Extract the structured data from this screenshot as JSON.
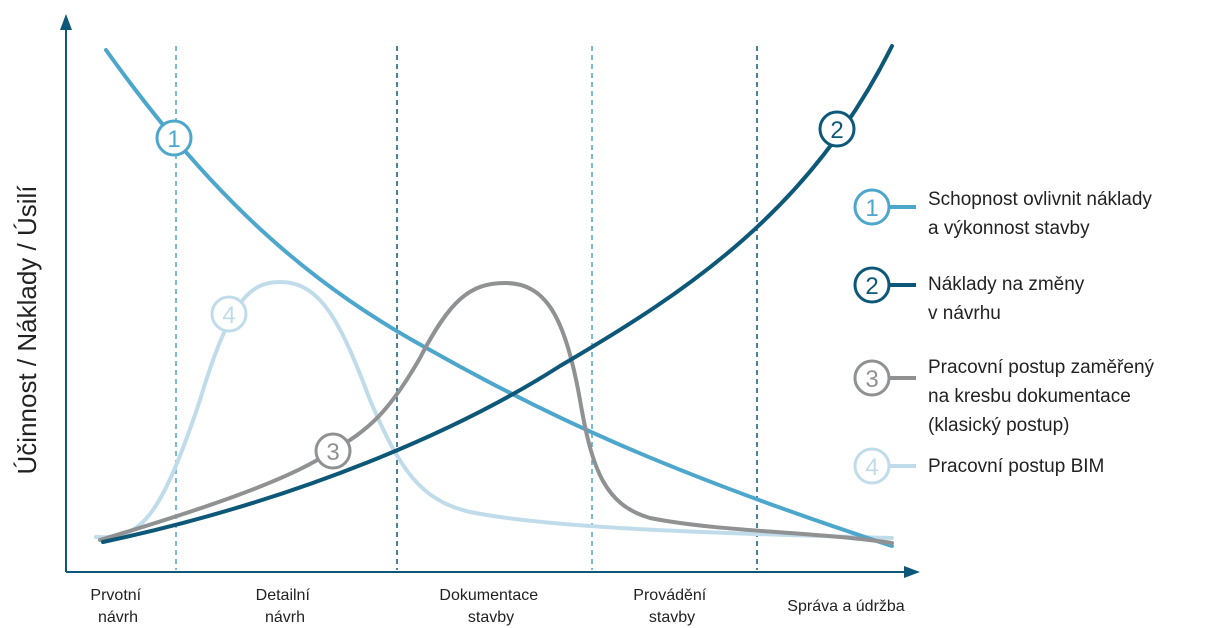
{
  "axes": {
    "y_label": "Účinnost / Náklady / Úsilí"
  },
  "phases": [
    {
      "line1": "Prvotní",
      "line2": "návrh"
    },
    {
      "line1": "Detailní",
      "line2": "návrh"
    },
    {
      "line1": "Dokumentace",
      "line2": "stavby"
    },
    {
      "line1": "Provádění",
      "line2": "stavby"
    },
    {
      "line1": "Správa a údržba",
      "line2": ""
    }
  ],
  "curves": [
    {
      "id": "1",
      "color": "#4da6cc"
    },
    {
      "id": "2",
      "color": "#0d5878"
    },
    {
      "id": "3",
      "color": "#8f9193"
    },
    {
      "id": "4",
      "color": "#c0dcea"
    }
  ],
  "legend": [
    {
      "number": "1",
      "line1": "Schopnost ovlivnit náklady",
      "line2": "a výkonnost stavby",
      "line3": ""
    },
    {
      "number": "2",
      "line1": "Náklady na změny",
      "line2": "v návrhu",
      "line3": ""
    },
    {
      "number": "3",
      "line1": "Pracovní postup zaměřený",
      "line2": "na kresbu dokumentace",
      "line3": "(klasický postup)"
    },
    {
      "number": "4",
      "line1": "Pracovní postup BIM",
      "line2": "",
      "line3": ""
    }
  ]
}
